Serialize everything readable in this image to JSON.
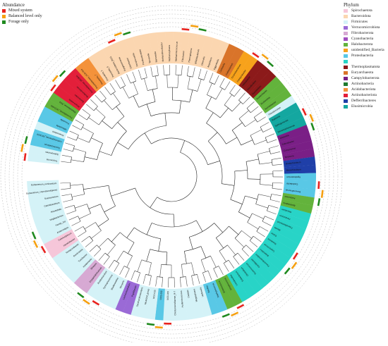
{
  "abundance_legend": {
    "title": "Abundance",
    "items": [
      {
        "label": "Mixed system",
        "color": "#e8231f"
      },
      {
        "label": "Balanced level only",
        "color": "#f5a011"
      },
      {
        "label": "Forage only",
        "color": "#1f8a1f"
      }
    ]
  },
  "phylum_legend": {
    "title": "Phylum",
    "items": [
      {
        "label": "Spirochaetota",
        "color": "#f6c6d9"
      },
      {
        "label": "Bacteroidota",
        "color": "#fbd6b0"
      },
      {
        "label": "Firmicutes",
        "color": "#d4f2f7"
      },
      {
        "label": "Verrucomicrobiota",
        "color": "#9a6ad6"
      },
      {
        "label": "Fibrobacterota",
        "color": "#d7a9d3"
      },
      {
        "label": "Cyanobacteria",
        "color": "#a24fc0"
      },
      {
        "label": "Halobacterota",
        "color": "#63b33c"
      },
      {
        "label": "unidentified_Bacteria",
        "color": "#f7a21b"
      },
      {
        "label": "Proteobacteria",
        "color": "#59c8e6"
      },
      {
        "label": "",
        "color": "#28d4c7"
      },
      {
        "label": "Thermoplasmatota",
        "color": "#8c1a1a"
      },
      {
        "label": "Euryarchaeota",
        "color": "#d9742a"
      },
      {
        "label": "Campylobacterota",
        "color": "#7a1f86"
      },
      {
        "label": "Actinobacteria",
        "color": "#1f7a2f"
      },
      {
        "label": "Acidobacteriota",
        "color": "#f4923a"
      },
      {
        "label": "Actinobacteriota",
        "color": "#e31f3a"
      },
      {
        "label": "Defferribacteres",
        "color": "#1f3fa8"
      },
      {
        "label": "Elusimicrobia",
        "color": "#14a7a0"
      }
    ]
  },
  "genera": [
    "Treponema",
    "Selenomonas",
    "Succiniclasticum",
    "Lachnospiraceae_NK3A20",
    "Anaerovibrio",
    "Mitsuokella",
    "Prevotella",
    "Prevotellaceae_UCG-001",
    "Rikenellaceae_RC9",
    "Alloprevotella",
    "Bacteroides",
    "Muribaculaceae",
    "Prevotellaceae_NK3B31",
    "Prevotellaceae_UCG-003",
    "Prevotella_7",
    "Prevotella_1",
    "Prevotella_9",
    "Bacteroidales_BS11",
    "Dysgonomonas",
    "Odoribacter",
    "Paraprevotella",
    "Parabacteroides",
    "Tannerella",
    "Barnesiella",
    "Methanobrevibacter",
    "Methanosphaera",
    "Methanimicrococcus",
    "Fibrobacter",
    "Thermoplasma",
    "Bifidobacterium",
    "Olsenella",
    "Atopobium",
    "Eggerthella",
    "Collinsella",
    "Cutibacterium",
    "Corynebacterium",
    "Campylobacter",
    "Helicobacter",
    "Desulfovibrio",
    "Succinivibrio",
    "Ruminobacter",
    "Escherichia",
    "Acinetobacter",
    "Pseudomonas",
    "Ralstonia",
    "Sphingomonas",
    "Stenotrophomonas",
    "Klebsiella",
    "Enterobacter",
    "Comamonas",
    "Neisseria",
    "Bradyrhizobium",
    "Mesorhizobium",
    "Agrobacterium",
    "Caulobacter",
    "Brevundimonas",
    "Acidovorax",
    "Burkholderia",
    "Rhizobium",
    "Paracoccus",
    "Faecalibacterium",
    "Blautia",
    "Dorea",
    "Roseburia",
    "Coprococcus",
    "Butyrivibrio",
    "Pseudobutyrivibrio",
    "Oscillibacter",
    "Ruminococcus",
    "Clostridium",
    "Eubacterium",
    "Lactobacillus",
    "Streptococcus",
    "Enterococcus",
    "Staphylococcus",
    "Bacillus",
    "Veillonella",
    "Megasphaera",
    "Dialister",
    "Acidaminococcus",
    "Christensenellaceae_R-7",
    "UCG-005",
    "UCG-002",
    "UCG-010",
    "NK4A214_group",
    "Saccharofermentans",
    "Papillibacter",
    "Lachnoclostridium",
    "Moryella",
    "Shuttleworthia",
    "Syntrophococcus",
    "Acetitomaculum",
    "Erysipelotrichaceae",
    "Sharpea",
    "Holdemania",
    "Turicibacter",
    "Romboutsia",
    "Terrisporobacter",
    "Intestinibacter",
    "Cellulosilyticum",
    "Anaerostipes",
    "Family_XIII",
    "Mogibacterium",
    "Howardella",
    "Catenibacterium",
    "Solobacterium",
    "Eubacterium_coprostanoligenes",
    "Eubacterium_ruminantium"
  ]
}
